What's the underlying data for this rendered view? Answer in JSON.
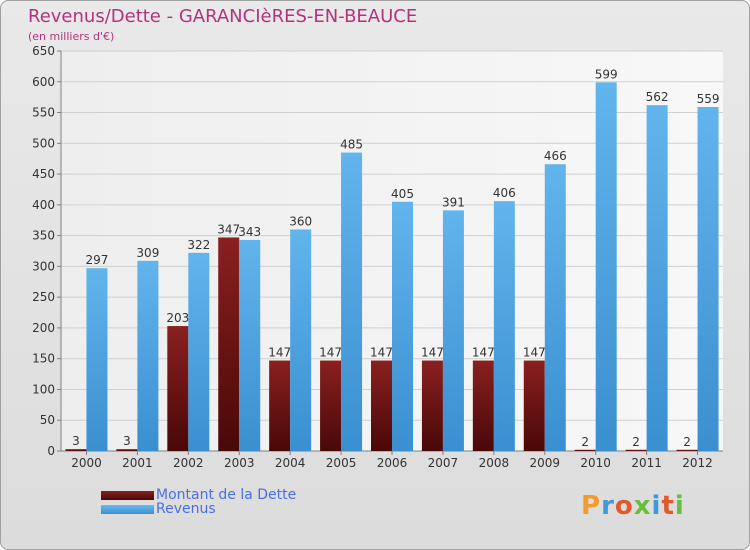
{
  "header": {
    "title": "Revenus/Dette - GARANCIèRES-EN-BEAUCE",
    "subtitle": "(en milliers d'€)"
  },
  "legend": {
    "debt_label": "Montant de la Dette",
    "revenue_label": "Revenus"
  },
  "logo": {
    "text": "Proxiti"
  },
  "colors": {
    "debt": "#6b1010",
    "revenue": "#4aa3e0",
    "text": "#b3337a"
  },
  "chart_data": {
    "type": "bar",
    "title": "Revenus/Dette - GARANCIèRES-EN-BEAUCE",
    "subtitle": "(en milliers d'€)",
    "categories": [
      "2000",
      "2001",
      "2002",
      "2003",
      "2004",
      "2005",
      "2006",
      "2007",
      "2008",
      "2009",
      "2010",
      "2011",
      "2012"
    ],
    "series": [
      {
        "name": "Montant de la Dette",
        "values": [
          3,
          3,
          203,
          347,
          147,
          147,
          147,
          147,
          147,
          147,
          2,
          2,
          2
        ]
      },
      {
        "name": "Revenus",
        "values": [
          297,
          309,
          322,
          343,
          360,
          485,
          405,
          391,
          406,
          466,
          599,
          562,
          559
        ]
      }
    ],
    "yticks": [
      0,
      50,
      100,
      150,
      200,
      250,
      300,
      350,
      400,
      450,
      500,
      550,
      600,
      650
    ],
    "ylim": [
      0,
      650
    ],
    "grid": true,
    "legend_position": "bottom-left"
  }
}
